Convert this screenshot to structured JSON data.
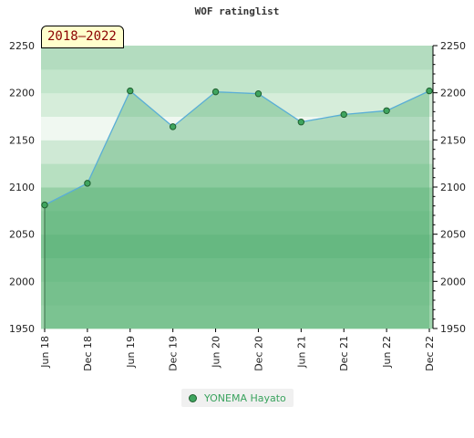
{
  "chart_data": {
    "type": "area",
    "title": "WOF ratinglist",
    "period": "2018–2022",
    "categories": [
      "Jun 18",
      "Dec 18",
      "Jun 19",
      "Dec 19",
      "Jun 20",
      "Dec 20",
      "Jun 21",
      "Dec 21",
      "Jun 22",
      "Dec 22"
    ],
    "series": [
      {
        "name": "YONEMA Hayato",
        "values": [
          2081,
          2104,
          2202,
          2164,
          2201,
          2199,
          2169,
          2177,
          2181,
          2202
        ]
      }
    ],
    "ylim": [
      1950,
      2250
    ],
    "yticks": [
      1950,
      2000,
      2050,
      2100,
      2150,
      2200,
      2250
    ],
    "colors": {
      "line": "#5aaed6",
      "area_fill": "#3aa35e",
      "marker": "#3fa55f",
      "marker_edge": "#1f5f2f"
    }
  }
}
